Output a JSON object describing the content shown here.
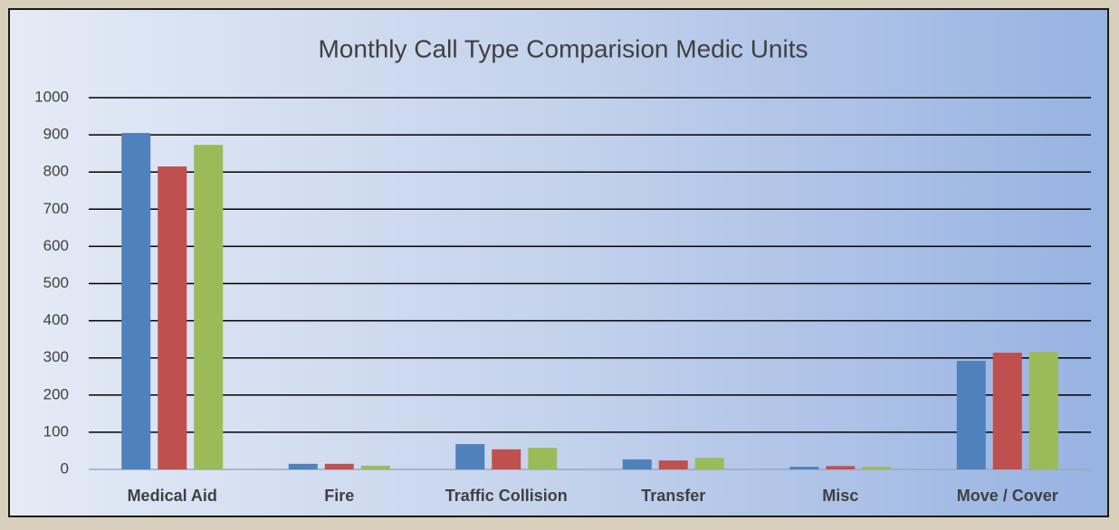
{
  "chart_data": {
    "type": "bar",
    "title": "Monthly Call Type Comparision Medic Units",
    "categories": [
      "Medical Aid",
      "Fire",
      "Traffic Collision",
      "Transfer",
      "Misc",
      "Move / Cover"
    ],
    "series": [
      {
        "color": "#4f81bd",
        "values": [
          905,
          15,
          68,
          27,
          7,
          292
        ]
      },
      {
        "color": "#c0504d",
        "values": [
          815,
          15,
          54,
          24,
          9,
          314
        ]
      },
      {
        "color": "#9bbb59",
        "values": [
          873,
          10,
          58,
          31,
          7,
          316
        ]
      }
    ],
    "ylim": [
      0,
      1000
    ],
    "yticks": [
      0,
      100,
      200,
      300,
      400,
      500,
      600,
      700,
      800,
      900,
      1000
    ],
    "grid": true
  }
}
